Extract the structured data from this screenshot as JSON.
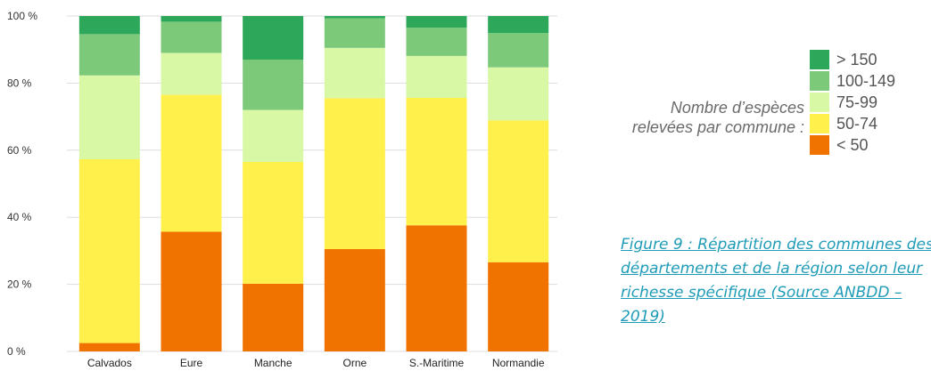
{
  "chart_data": {
    "type": "bar",
    "stacked": true,
    "categories": [
      "Calvados",
      "Eure",
      "Manche",
      "Orne",
      "S.-Maritime",
      "Normandie"
    ],
    "series": [
      {
        "name": "< 50",
        "color": "#f07300",
        "values": [
          2.5,
          35.7,
          20.2,
          30.5,
          37.6,
          26.6
        ]
      },
      {
        "name": "50-74",
        "color": "#fff04c",
        "values": [
          54.8,
          40.8,
          36.3,
          45.0,
          38.0,
          42.3
        ]
      },
      {
        "name": "75-99",
        "color": "#d8f8a6",
        "values": [
          25.0,
          12.5,
          15.5,
          15.0,
          12.5,
          15.8
        ]
      },
      {
        "name": "100-149",
        "color": "#7cc97a",
        "values": [
          12.3,
          9.3,
          15.0,
          8.8,
          8.4,
          10.2
        ]
      },
      {
        "name": ">  150",
        "color": "#2da85a",
        "values": [
          5.4,
          1.7,
          13.0,
          0.7,
          3.5,
          5.1
        ]
      }
    ],
    "yticks": [
      "0 %",
      "20 %",
      "40 %",
      "60 %",
      "80 %",
      "100 %"
    ],
    "ylim": [
      0,
      100
    ],
    "grid": true,
    "legend_position": "right"
  },
  "legend": {
    "title_lines": [
      "Nombre d’espèces",
      "relevées par commune :"
    ],
    "items": [
      {
        "label": ">  150",
        "color": "#2da85a"
      },
      {
        "label": "100-149",
        "color": "#7cc97a"
      },
      {
        "label": "75-99",
        "color": "#d8f8a6"
      },
      {
        "label": "50-74",
        "color": "#fff04c"
      },
      {
        "label": "< 50",
        "color": "#f07300"
      }
    ]
  },
  "caption": {
    "lines": [
      "Figure 9 : Répartition des communes des",
      "départements et de la région selon leur",
      "richesse spécifique (Source ANBDD –",
      "2019)"
    ]
  }
}
